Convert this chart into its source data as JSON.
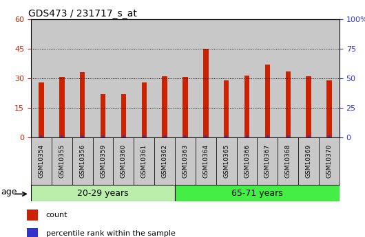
{
  "title": "GDS473 / 231717_s_at",
  "categories": [
    "GSM10354",
    "GSM10355",
    "GSM10356",
    "GSM10359",
    "GSM10360",
    "GSM10361",
    "GSM10362",
    "GSM10363",
    "GSM10364",
    "GSM10365",
    "GSM10366",
    "GSM10367",
    "GSM10368",
    "GSM10369",
    "GSM10370"
  ],
  "count_values": [
    28,
    30.5,
    33,
    22,
    22,
    28,
    31,
    30.5,
    45,
    29,
    31.5,
    37,
    33.5,
    31,
    29
  ],
  "percentile_values": [
    2,
    2,
    2,
    2,
    2,
    2,
    2,
    2,
    2,
    2,
    2,
    2,
    2,
    2,
    2
  ],
  "count_color": "#cc2200",
  "percentile_color": "#3333cc",
  "bar_bg_color": "#c8c8c8",
  "group1_label": "20-29 years",
  "group2_label": "65-71 years",
  "group1_n": 7,
  "group2_n": 8,
  "group1_bg": "#bbeeaa",
  "group2_bg": "#44ee44",
  "age_label": "age",
  "ylim_left": [
    0,
    60
  ],
  "ylim_right": [
    0,
    100
  ],
  "left_yticks": [
    0,
    15,
    30,
    45,
    60
  ],
  "right_yticks": [
    0,
    25,
    50,
    75,
    100
  ],
  "right_yticklabels": [
    "0",
    "25",
    "50",
    "75",
    "100%"
  ],
  "legend_count_label": "count",
  "legend_percentile_label": "percentile rank within the sample",
  "plot_bg": "#ffffff"
}
